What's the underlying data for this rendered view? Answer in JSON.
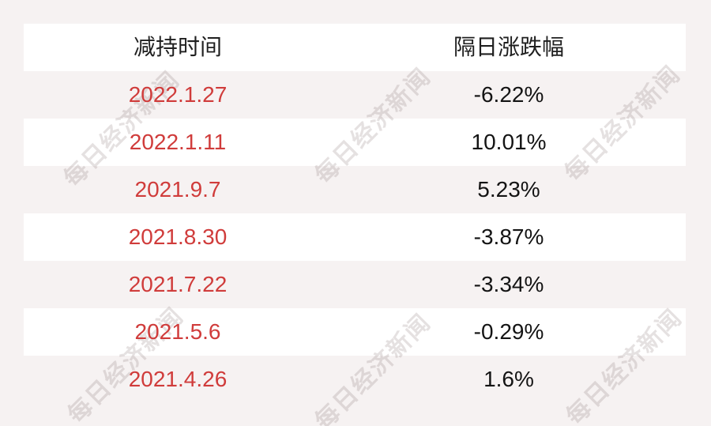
{
  "chart_data": {
    "type": "table",
    "columns": [
      "减持时间",
      "隔日涨跌幅"
    ],
    "rows": [
      [
        "2022.1.27",
        "-6.22%"
      ],
      [
        "2022.1.11",
        "10.01%"
      ],
      [
        "2021.9.7",
        "5.23%"
      ],
      [
        "2021.8.30",
        "-3.87%"
      ],
      [
        "2021.7.22",
        "-3.34%"
      ],
      [
        "2021.5.6",
        "-0.29%"
      ],
      [
        "2021.4.26",
        "1.6%"
      ]
    ],
    "next_day_change_percent": [
      -6.22,
      10.01,
      5.23,
      -3.87,
      -3.34,
      -0.29,
      1.6
    ],
    "layout": "two-column centered table, header row plus 7 data rows, alternating white stripes on light pink-gray background, no grid lines, no legend"
  },
  "watermark": {
    "text": "每日经济新闻"
  },
  "colors": {
    "page_background": "#f6f2f2",
    "row_white": "#ffffff",
    "date_red": "#d03c3b",
    "value_black": "#141414",
    "header_black": "#1f1f1f",
    "watermark_gray": "#e3dcdb"
  }
}
